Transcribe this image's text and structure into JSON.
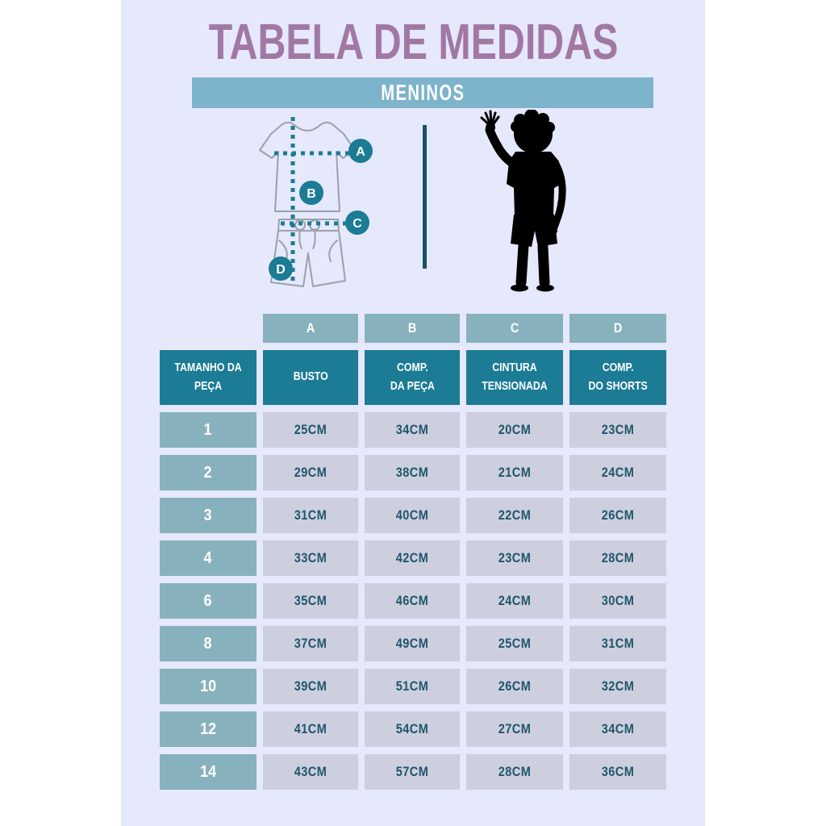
{
  "page": {
    "title": "TABELA DE MEDIDAS",
    "subtitle": "MENINOS"
  },
  "diagram": {
    "markers": [
      "A",
      "B",
      "C",
      "D"
    ],
    "figures": [
      "tshirt-and-shorts-outline-icon",
      "boy-waving-silhouette-icon"
    ]
  },
  "chart_data": {
    "type": "table",
    "title": "TABELA DE MEDIDAS",
    "subtitle": "MENINOS",
    "letter_headers": [
      "A",
      "B",
      "C",
      "D"
    ],
    "columns": [
      "TAMANHO DA PEÇA",
      "BUSTO",
      "COMP. DA PEÇA",
      "CINTURA TENSIONADA",
      "COMP. DO SHORTS"
    ],
    "columns_display": [
      "TAMANHO DA\nPEÇA",
      "BUSTO",
      "COMP.\nDA PEÇA",
      "CINTURA\nTENSIONADA",
      "COMP.\nDO SHORTS"
    ],
    "rows": [
      [
        "1",
        "25CM",
        "34CM",
        "20CM",
        "23CM"
      ],
      [
        "2",
        "29CM",
        "38CM",
        "21CM",
        "24CM"
      ],
      [
        "3",
        "31CM",
        "40CM",
        "22CM",
        "26CM"
      ],
      [
        "4",
        "33CM",
        "42CM",
        "23CM",
        "28CM"
      ],
      [
        "6",
        "35CM",
        "46CM",
        "24CM",
        "30CM"
      ],
      [
        "8",
        "37CM",
        "49CM",
        "25CM",
        "31CM"
      ],
      [
        "10",
        "39CM",
        "51CM",
        "26CM",
        "32CM"
      ],
      [
        "12",
        "41CM",
        "54CM",
        "27CM",
        "34CM"
      ],
      [
        "14",
        "43CM",
        "57CM",
        "28CM",
        "36CM"
      ]
    ]
  },
  "colors": {
    "page_background": "#ffffff",
    "panel_background": "#e6e8fb",
    "title_purple": "#a178a4",
    "banner_teal": "#7db3cb",
    "header_dark_teal": "#1c7b95",
    "cell_light_teal": "#87b2bd",
    "cell_gray": "#cdcfdf",
    "cell_text_teal": "#1f566a",
    "divider_dark": "#175264",
    "silhouette_black": "#000000",
    "garment_outline_gray": "#9ba1a9"
  }
}
